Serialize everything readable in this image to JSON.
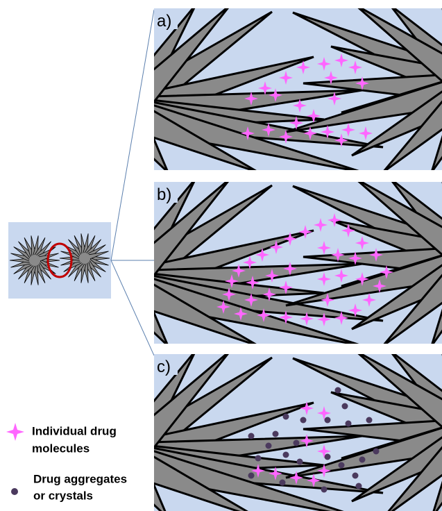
{
  "panels": [
    {
      "label": "a)"
    },
    {
      "label": "b)"
    },
    {
      "label": "c)"
    }
  ],
  "legend": [
    {
      "lines": [
        "Individual drug",
        "molecules"
      ]
    },
    {
      "lines": [
        "Drug aggregates",
        "or crystals"
      ]
    }
  ]
}
